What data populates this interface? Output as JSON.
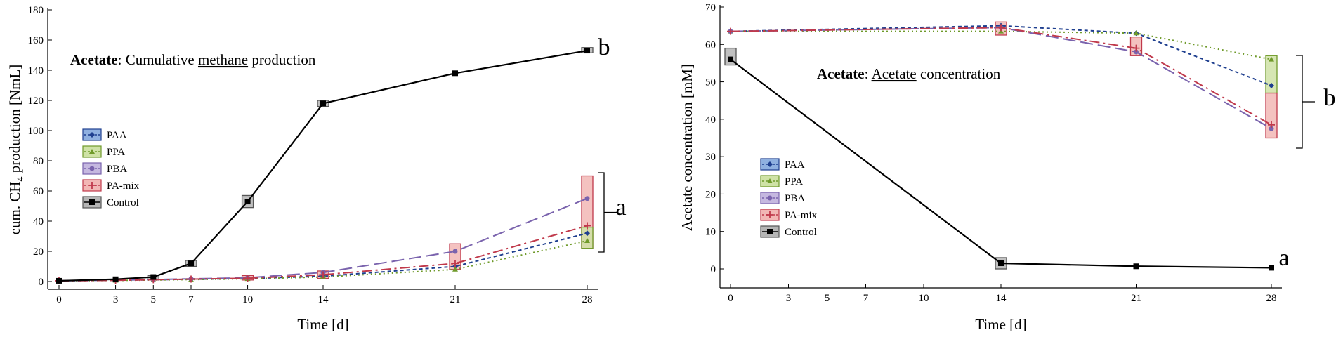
{
  "chart_data": [
    {
      "type": "line",
      "panel": "left",
      "title": "",
      "annotation": {
        "bold": "Acetate",
        "sep": ": ",
        "pre": "Cumulative ",
        "underlined": "methane",
        "post": " production"
      },
      "xlabel": "Time [d]",
      "ylabel_main": "cum. CH",
      "ylabel_sub": "4",
      "ylabel_tail": " production [NmL]",
      "xlim": [
        0,
        28
      ],
      "ylim": [
        0,
        180
      ],
      "xticks": [
        0,
        3,
        5,
        7,
        10,
        14,
        21,
        28
      ],
      "yticks": [
        0,
        20,
        40,
        60,
        80,
        100,
        120,
        140,
        160,
        180
      ],
      "series": [
        {
          "name": "PAA",
          "color": "#1f3f8f",
          "dash": "5,4",
          "marker": "diamond",
          "x": [
            0,
            3,
            5,
            7,
            10,
            14,
            21,
            28
          ],
          "values": [
            0.5,
            0.8,
            1.2,
            1.5,
            2,
            3.5,
            10,
            32
          ]
        },
        {
          "name": "PPA",
          "color": "#6f9a2a",
          "dash": "2,4",
          "marker": "triangle",
          "x": [
            0,
            3,
            5,
            7,
            10,
            14,
            21,
            28
          ],
          "values": [
            0.5,
            0.7,
            1,
            1.3,
            1.8,
            3,
            8,
            27
          ]
        },
        {
          "name": "PBA",
          "color": "#7a63ad",
          "dash": "18,7",
          "marker": "circle",
          "x": [
            0,
            3,
            5,
            7,
            10,
            14,
            21,
            28
          ],
          "values": [
            0.5,
            0.9,
            1.3,
            1.8,
            2.5,
            6,
            20,
            55
          ]
        },
        {
          "name": "PA-mix",
          "color": "#c0394b",
          "dash": "14,5,3,5",
          "marker": "plus",
          "x": [
            0,
            3,
            5,
            7,
            10,
            14,
            21,
            28
          ],
          "values": [
            0.5,
            0.8,
            1.2,
            1.6,
            2.2,
            4.5,
            12,
            37
          ]
        },
        {
          "name": "Control",
          "color": "#000000",
          "dash": "",
          "marker": "square",
          "x": [
            0,
            3,
            5,
            7,
            10,
            14,
            21,
            28
          ],
          "values": [
            0.5,
            1.5,
            3,
            12,
            53,
            118,
            138,
            153
          ]
        }
      ],
      "ranges": [
        {
          "x": 5,
          "low": 1,
          "high": 4,
          "fill": "#b5b5b5",
          "stroke": "#555555"
        },
        {
          "x": 7,
          "low": 10,
          "high": 14,
          "fill": "#b5b5b5",
          "stroke": "#555555"
        },
        {
          "x": 10,
          "low": 49,
          "high": 57,
          "fill": "#b5b5b5",
          "stroke": "#555555"
        },
        {
          "x": 14,
          "low": 116,
          "high": 120,
          "fill": "#b5b5b5",
          "stroke": "#555555"
        },
        {
          "x": 28,
          "low": 151.5,
          "high": 155,
          "fill": "#b5b5b5",
          "stroke": "#555555"
        },
        {
          "x": 10,
          "low": 1,
          "high": 4,
          "fill": "#f2b7b5",
          "stroke": "#c0394b"
        },
        {
          "x": 14,
          "low": 2,
          "high": 7,
          "fill": "#f2b7b5",
          "stroke": "#c0394b"
        },
        {
          "x": 21,
          "low": 8,
          "high": 25,
          "fill": "#f2b7b5",
          "stroke": "#c0394b"
        },
        {
          "x": 28,
          "low": 22,
          "high": 70,
          "fill": "#f2b7b5",
          "stroke": "#c0394b"
        },
        {
          "x": 28,
          "low": 22,
          "high": 36,
          "fill": "#cfe2a6",
          "stroke": "#6f9a2a"
        }
      ],
      "letters": [
        {
          "text": "b",
          "group": "Control"
        },
        {
          "text": "a",
          "group": "PAA / PPA / PBA / PA-mix"
        }
      ],
      "legend": {
        "placement": "left-middle",
        "entries": [
          "PAA",
          "PPA",
          "PBA",
          "PA-mix",
          "Control"
        ]
      }
    },
    {
      "type": "line",
      "panel": "right",
      "title": "",
      "annotation": {
        "bold": "Acetate",
        "sep": ": ",
        "pre": "",
        "underlined": "Acetate",
        "post": " concentration"
      },
      "xlabel": "Time [d]",
      "ylabel_main": "Acetate concentration [mM]",
      "xlim": [
        0,
        28
      ],
      "ylim": [
        0,
        70
      ],
      "xticks": [
        0,
        3,
        5,
        7,
        10,
        14,
        21,
        28
      ],
      "yticks": [
        0,
        10,
        20,
        30,
        40,
        50,
        60,
        70
      ],
      "series": [
        {
          "name": "PAA",
          "color": "#1f3f8f",
          "dash": "5,4",
          "marker": "diamond",
          "x": [
            0,
            14,
            21,
            28
          ],
          "values": [
            63.5,
            65,
            63,
            49
          ]
        },
        {
          "name": "PPA",
          "color": "#6f9a2a",
          "dash": "2,4",
          "marker": "triangle",
          "x": [
            0,
            14,
            21,
            28
          ],
          "values": [
            63.5,
            63.5,
            63,
            56
          ]
        },
        {
          "name": "PBA",
          "color": "#7a63ad",
          "dash": "18,7",
          "marker": "circle",
          "x": [
            0,
            14,
            21,
            28
          ],
          "values": [
            63.5,
            64.5,
            58,
            37.5
          ]
        },
        {
          "name": "PA-mix",
          "color": "#c0394b",
          "dash": "14,5,3,5",
          "marker": "plus",
          "x": [
            0,
            14,
            21,
            28
          ],
          "values": [
            63.5,
            64.5,
            59,
            38.5
          ]
        },
        {
          "name": "Control",
          "color": "#000000",
          "dash": "",
          "marker": "square",
          "x": [
            0,
            14,
            21,
            28
          ],
          "values": [
            56,
            1.5,
            0.7,
            0.3
          ]
        }
      ],
      "ranges": [
        {
          "x": 0,
          "low": 54.5,
          "high": 59,
          "fill": "#b5b5b5",
          "stroke": "#555555"
        },
        {
          "x": 14,
          "low": 0,
          "high": 3,
          "fill": "#b5b5b5",
          "stroke": "#555555"
        },
        {
          "x": 14,
          "low": 62.5,
          "high": 66,
          "fill": "#f2b7b5",
          "stroke": "#c0394b"
        },
        {
          "x": 21,
          "low": 57,
          "high": 62,
          "fill": "#f2b7b5",
          "stroke": "#c0394b"
        },
        {
          "x": 28,
          "low": 47,
          "high": 57,
          "fill": "#cfe2a6",
          "stroke": "#6f9a2a"
        },
        {
          "x": 28,
          "low": 35,
          "high": 47,
          "fill": "#f2b7b5",
          "stroke": "#c0394b"
        }
      ],
      "letters": [
        {
          "text": "b",
          "group": "PAA / PPA / PBA / PA-mix"
        },
        {
          "text": "a",
          "group": "Control"
        }
      ],
      "legend": {
        "placement": "left-middle",
        "entries": [
          "PAA",
          "PPA",
          "PBA",
          "PA-mix",
          "Control"
        ]
      }
    }
  ]
}
